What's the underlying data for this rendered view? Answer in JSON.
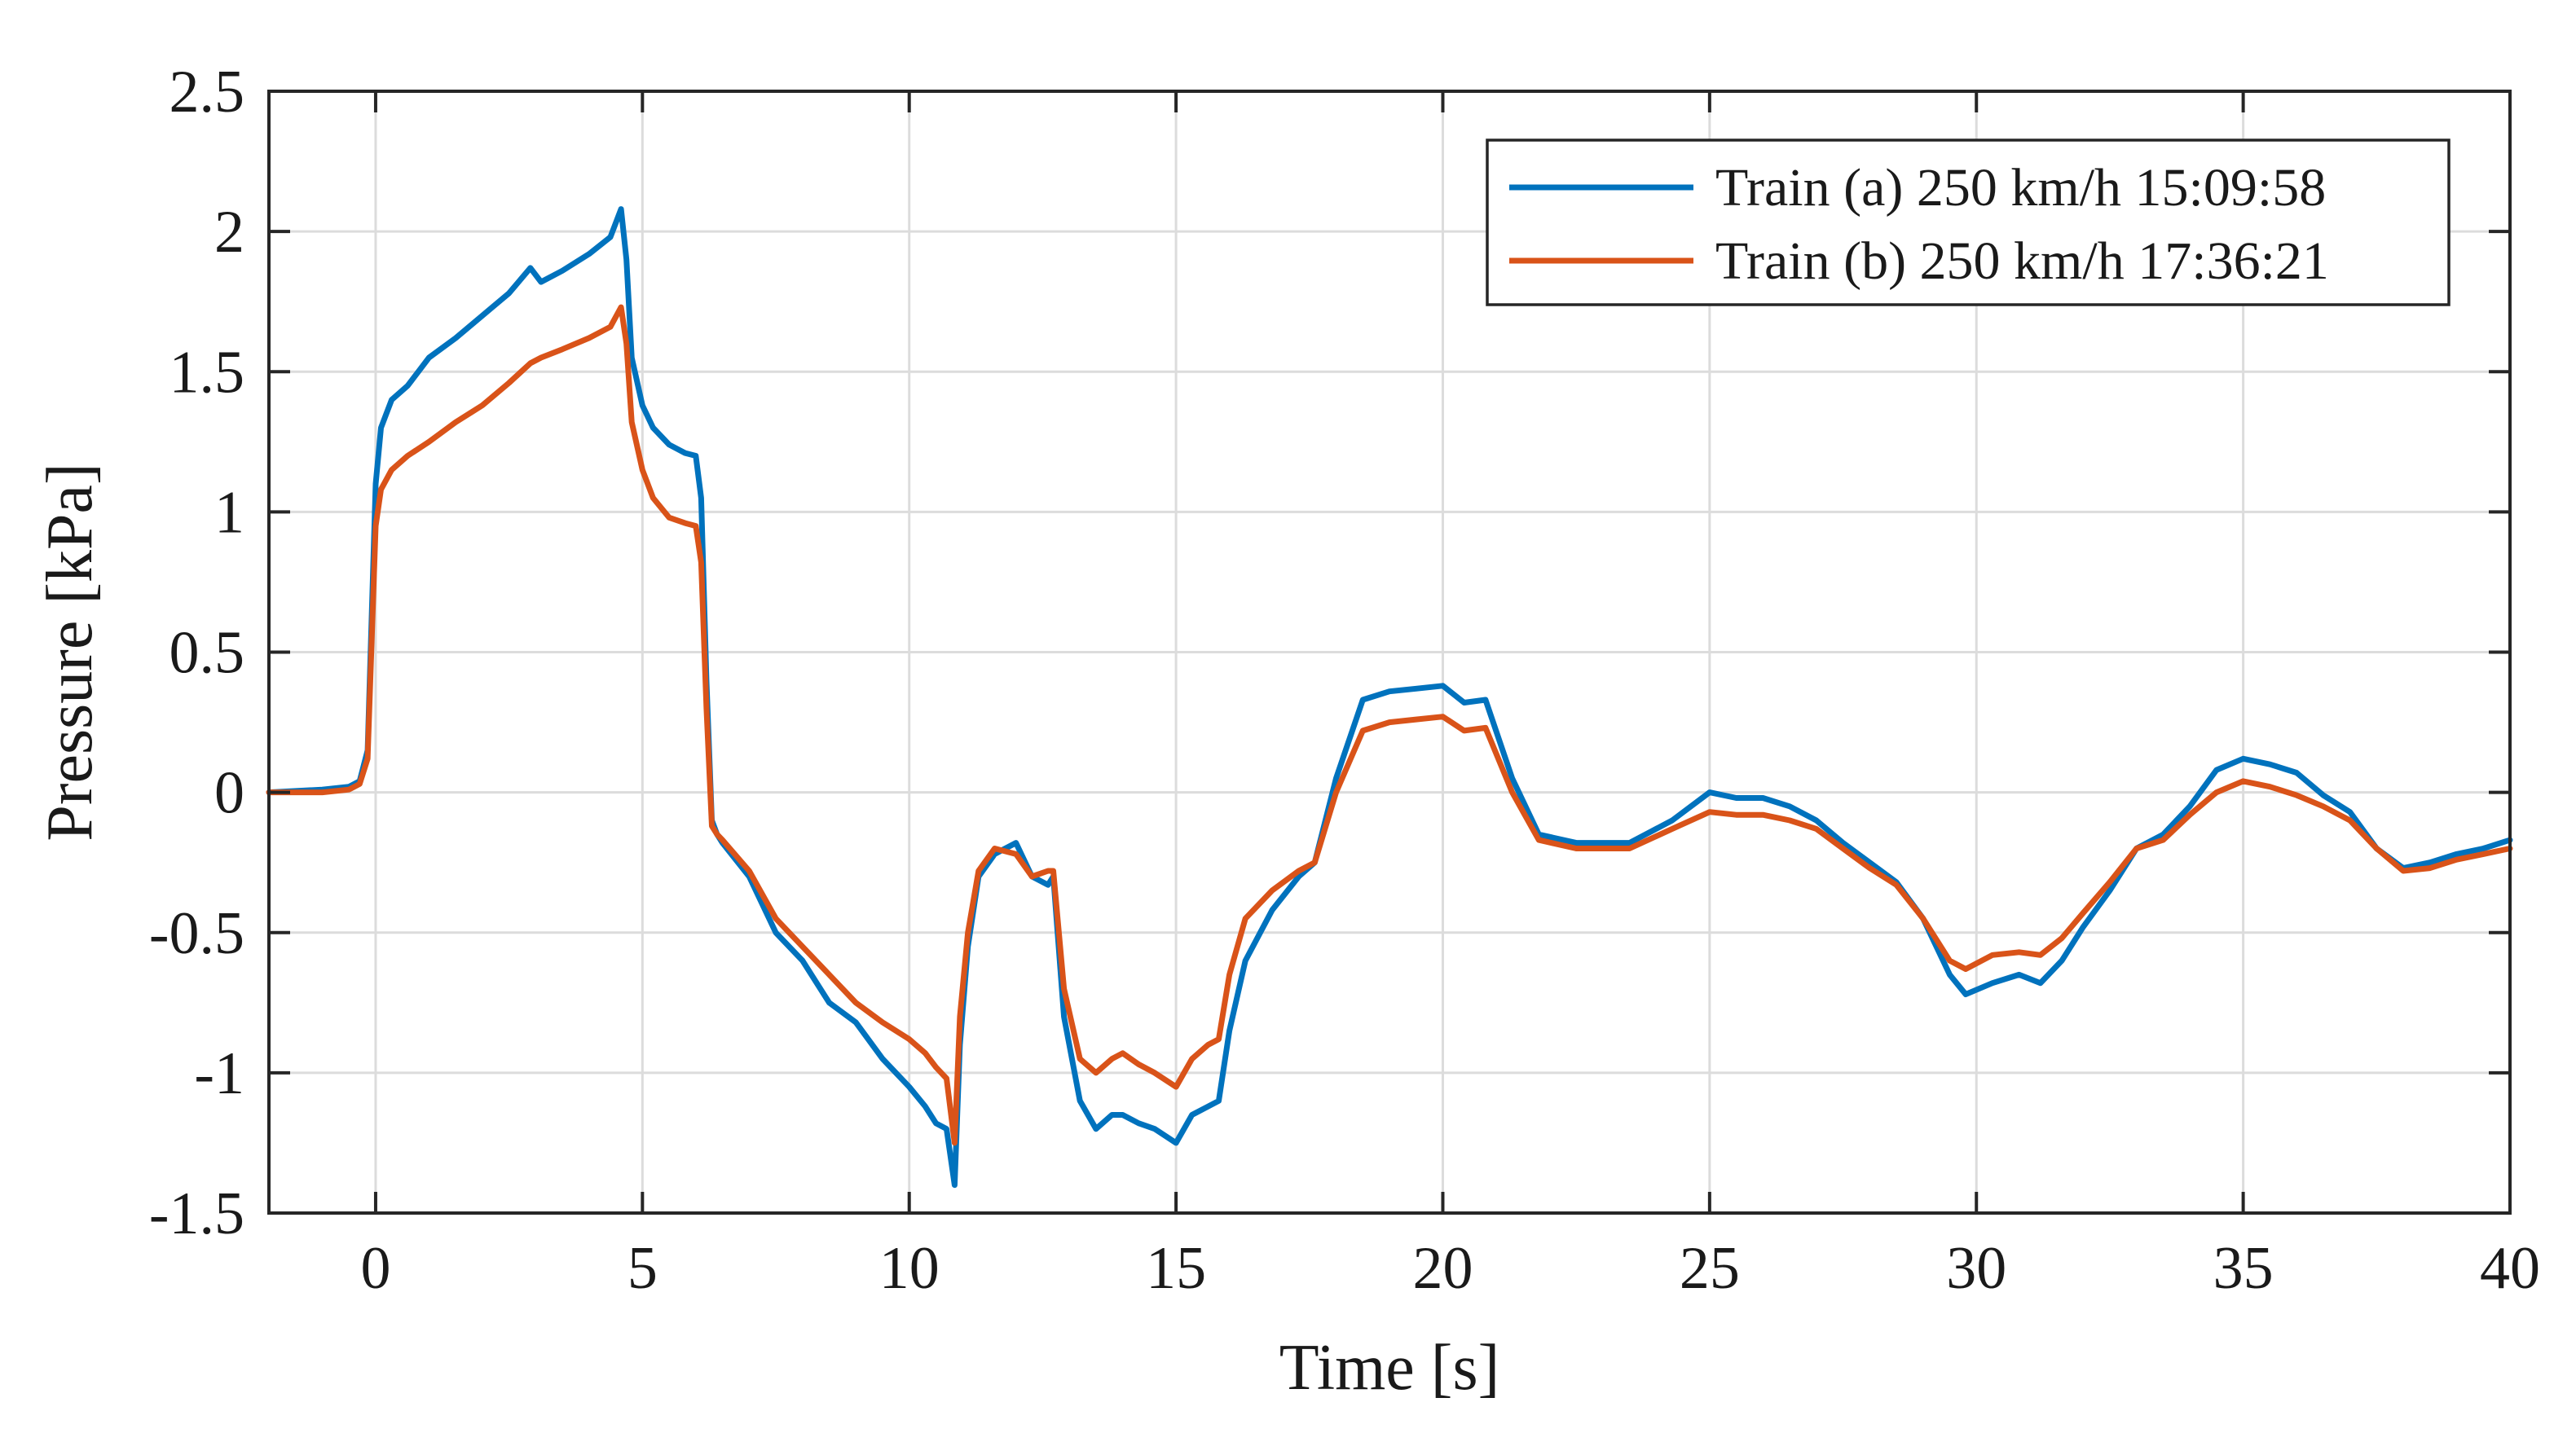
{
  "chart_data": {
    "type": "line",
    "title": "",
    "xlabel": "Time [s]",
    "ylabel": "Pressure [kPa]",
    "xlim": [
      -2,
      40
    ],
    "ylim": [
      -1.5,
      2.5
    ],
    "grid": true,
    "legend_position": "top-right",
    "xticks": [
      0,
      5,
      10,
      15,
      20,
      25,
      30,
      35,
      40
    ],
    "xtick_labels": [
      "0",
      "5",
      "10",
      "15",
      "20",
      "25",
      "30",
      "35",
      "40"
    ],
    "yticks": [
      -1.5,
      -1,
      -0.5,
      0,
      0.5,
      1,
      1.5,
      2,
      2.5
    ],
    "ytick_labels": [
      "-1.5",
      "-1",
      "-0.5",
      "0",
      "0.5",
      "1",
      "1.5",
      "2",
      "2.5"
    ],
    "series": [
      {
        "name": "Train (a) 250 km/h 15:09:58",
        "color": "#0072bd",
        "x": [
          -2,
          -1,
          -0.5,
          -0.3,
          -0.15,
          0,
          0.1,
          0.3,
          0.6,
          1,
          1.5,
          2,
          2.5,
          2.9,
          3.1,
          3.5,
          4,
          4.4,
          4.6,
          4.7,
          4.8,
          5,
          5.2,
          5.5,
          5.8,
          6,
          6.1,
          6.2,
          6.3,
          6.4,
          6.5,
          7,
          7.5,
          8,
          8.5,
          9,
          9.5,
          10,
          10.3,
          10.5,
          10.7,
          10.85,
          10.95,
          11.1,
          11.3,
          11.6,
          12,
          12.3,
          12.6,
          12.7,
          12.9,
          13.2,
          13.5,
          13.8,
          14,
          14.3,
          14.6,
          15,
          15.3,
          15.6,
          15.8,
          16,
          16.3,
          16.8,
          17.3,
          17.6,
          18,
          18.5,
          19,
          19.5,
          20,
          20.4,
          20.8,
          21.3,
          21.8,
          22.5,
          23.5,
          24.3,
          25,
          25.5,
          26,
          26.5,
          27,
          27.5,
          28,
          28.5,
          29,
          29.5,
          29.8,
          30.3,
          30.8,
          31.2,
          31.6,
          32,
          32.5,
          33,
          33.5,
          34,
          34.5,
          35,
          35.5,
          36,
          36.5,
          37,
          37.5,
          38,
          38.5,
          39,
          39.5,
          40
        ],
        "y": [
          0,
          0.01,
          0.02,
          0.04,
          0.15,
          1.1,
          1.3,
          1.4,
          1.45,
          1.55,
          1.62,
          1.7,
          1.78,
          1.87,
          1.82,
          1.86,
          1.92,
          1.98,
          2.08,
          1.9,
          1.55,
          1.38,
          1.3,
          1.24,
          1.21,
          1.2,
          1.05,
          0.4,
          -0.1,
          -0.15,
          -0.18,
          -0.3,
          -0.5,
          -0.6,
          -0.75,
          -0.82,
          -0.95,
          -1.05,
          -1.12,
          -1.18,
          -1.2,
          -1.4,
          -0.9,
          -0.55,
          -0.3,
          -0.22,
          -0.18,
          -0.3,
          -0.33,
          -0.3,
          -0.8,
          -1.1,
          -1.2,
          -1.15,
          -1.15,
          -1.18,
          -1.2,
          -1.25,
          -1.15,
          -1.12,
          -1.1,
          -0.85,
          -0.6,
          -0.42,
          -0.3,
          -0.25,
          0.05,
          0.33,
          0.36,
          0.37,
          0.38,
          0.32,
          0.33,
          0.05,
          -0.15,
          -0.18,
          -0.18,
          -0.1,
          0.0,
          -0.02,
          -0.02,
          -0.05,
          -0.1,
          -0.18,
          -0.25,
          -0.32,
          -0.45,
          -0.65,
          -0.72,
          -0.68,
          -0.65,
          -0.68,
          -0.6,
          -0.48,
          -0.35,
          -0.2,
          -0.15,
          -0.05,
          0.08,
          0.12,
          0.1,
          0.07,
          -0.01,
          -0.07,
          -0.2,
          -0.27,
          -0.25,
          -0.22,
          -0.2,
          -0.17
        ]
      },
      {
        "name": "Train (b) 250 km/h 17:36:21",
        "color": "#d95319",
        "x": [
          -2,
          -1,
          -0.5,
          -0.3,
          -0.15,
          0,
          0.1,
          0.3,
          0.6,
          1,
          1.5,
          2,
          2.5,
          2.9,
          3.1,
          3.5,
          4,
          4.4,
          4.6,
          4.7,
          4.8,
          5,
          5.2,
          5.5,
          5.8,
          6,
          6.1,
          6.2,
          6.3,
          6.4,
          6.5,
          7,
          7.5,
          8,
          8.5,
          9,
          9.5,
          10,
          10.3,
          10.5,
          10.7,
          10.85,
          10.95,
          11.1,
          11.3,
          11.6,
          12,
          12.3,
          12.6,
          12.7,
          12.9,
          13.2,
          13.5,
          13.8,
          14,
          14.3,
          14.6,
          15,
          15.3,
          15.6,
          15.8,
          16,
          16.3,
          16.8,
          17.3,
          17.6,
          18,
          18.5,
          19,
          19.5,
          20,
          20.4,
          20.8,
          21.3,
          21.8,
          22.5,
          23.5,
          24.3,
          25,
          25.5,
          26,
          26.5,
          27,
          27.5,
          28,
          28.5,
          29,
          29.5,
          29.8,
          30.3,
          30.8,
          31.2,
          31.6,
          32,
          32.5,
          33,
          33.5,
          34,
          34.5,
          35,
          35.5,
          36,
          36.5,
          37,
          37.5,
          38,
          38.5,
          39,
          39.5,
          40
        ],
        "y": [
          0,
          0.0,
          0.01,
          0.03,
          0.12,
          0.95,
          1.08,
          1.15,
          1.2,
          1.25,
          1.32,
          1.38,
          1.46,
          1.53,
          1.55,
          1.58,
          1.62,
          1.66,
          1.73,
          1.6,
          1.32,
          1.15,
          1.05,
          0.98,
          0.96,
          0.95,
          0.82,
          0.3,
          -0.12,
          -0.15,
          -0.17,
          -0.28,
          -0.45,
          -0.55,
          -0.65,
          -0.75,
          -0.82,
          -0.88,
          -0.93,
          -0.98,
          -1.02,
          -1.25,
          -0.8,
          -0.5,
          -0.28,
          -0.2,
          -0.22,
          -0.3,
          -0.28,
          -0.28,
          -0.7,
          -0.95,
          -1.0,
          -0.95,
          -0.93,
          -0.97,
          -1.0,
          -1.05,
          -0.95,
          -0.9,
          -0.88,
          -0.65,
          -0.45,
          -0.35,
          -0.28,
          -0.25,
          0.0,
          0.22,
          0.25,
          0.26,
          0.27,
          0.22,
          0.23,
          0.0,
          -0.17,
          -0.2,
          -0.2,
          -0.13,
          -0.07,
          -0.08,
          -0.08,
          -0.1,
          -0.13,
          -0.2,
          -0.27,
          -0.33,
          -0.45,
          -0.6,
          -0.63,
          -0.58,
          -0.57,
          -0.58,
          -0.52,
          -0.43,
          -0.32,
          -0.2,
          -0.17,
          -0.08,
          0.0,
          0.04,
          0.02,
          -0.01,
          -0.05,
          -0.1,
          -0.2,
          -0.28,
          -0.27,
          -0.24,
          -0.22,
          -0.2
        ]
      }
    ]
  }
}
